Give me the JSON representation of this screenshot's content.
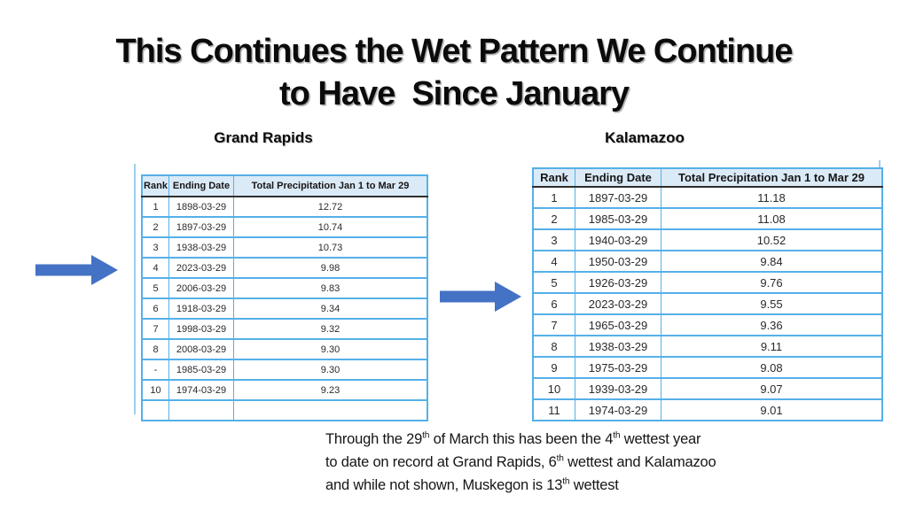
{
  "slide": {
    "title_line1": "This Continues the Wet Pattern We Continue",
    "title_line2": "to Have  Since January"
  },
  "labels": {
    "left": "Grand Rapids",
    "right": "Kalamazoo"
  },
  "colors": {
    "arrow": "#4472C4",
    "table_border": "#55B0E8",
    "header_bg": "#DBEAF7",
    "header_bottom_border": "#2F2F2F",
    "image_edge": "#9CD0EE"
  },
  "grand_rapids_table": {
    "columns": [
      "Rank",
      "Ending Date",
      "Total Precipitation Jan 1 to Mar 29"
    ],
    "rows": [
      [
        "1",
        "1898-03-29",
        "12.72"
      ],
      [
        "2",
        "1897-03-29",
        "10.74"
      ],
      [
        "3",
        "1938-03-29",
        "10.73"
      ],
      [
        "4",
        "2023-03-29",
        "9.98"
      ],
      [
        "5",
        "2006-03-29",
        "9.83"
      ],
      [
        "6",
        "1918-03-29",
        "9.34"
      ],
      [
        "7",
        "1998-03-29",
        "9.32"
      ],
      [
        "8",
        "2008-03-29",
        "9.30"
      ],
      [
        "-",
        "1985-03-29",
        "9.30"
      ],
      [
        "10",
        "1974-03-29",
        "9.23"
      ]
    ],
    "partial_row": [
      "",
      "",
      ""
    ]
  },
  "kalamazoo_table": {
    "columns": [
      "Rank",
      "Ending Date",
      "Total Precipitation Jan 1 to Mar 29"
    ],
    "rows": [
      [
        "1",
        "1897-03-29",
        "11.18"
      ],
      [
        "2",
        "1985-03-29",
        "11.08"
      ],
      [
        "3",
        "1940-03-29",
        "10.52"
      ],
      [
        "4",
        "1950-03-29",
        "9.84"
      ],
      [
        "5",
        "1926-03-29",
        "9.76"
      ],
      [
        "6",
        "2023-03-29",
        "9.55"
      ],
      [
        "7",
        "1965-03-29",
        "9.36"
      ],
      [
        "8",
        "1938-03-29",
        "9.11"
      ],
      [
        "9",
        "1975-03-29",
        "9.08"
      ],
      [
        "10",
        "1939-03-29",
        "9.07"
      ]
    ],
    "partial_row": [
      "11",
      "1974-03-29",
      "9.01"
    ]
  },
  "footnote": {
    "lines": [
      [
        {
          "t": "Through the 29"
        },
        {
          "s": "th"
        },
        {
          "t": " of March this has been the 4"
        },
        {
          "s": "th"
        },
        {
          "t": " wettest year"
        }
      ],
      [
        {
          "t": "to date on record at Grand Rapids, 6"
        },
        {
          "s": "th"
        },
        {
          "t": " wettest and Kalamazoo"
        }
      ],
      [
        {
          "t": "and while not shown, Muskegon is 13"
        },
        {
          "s": "th"
        },
        {
          "t": " wettest"
        }
      ]
    ]
  }
}
